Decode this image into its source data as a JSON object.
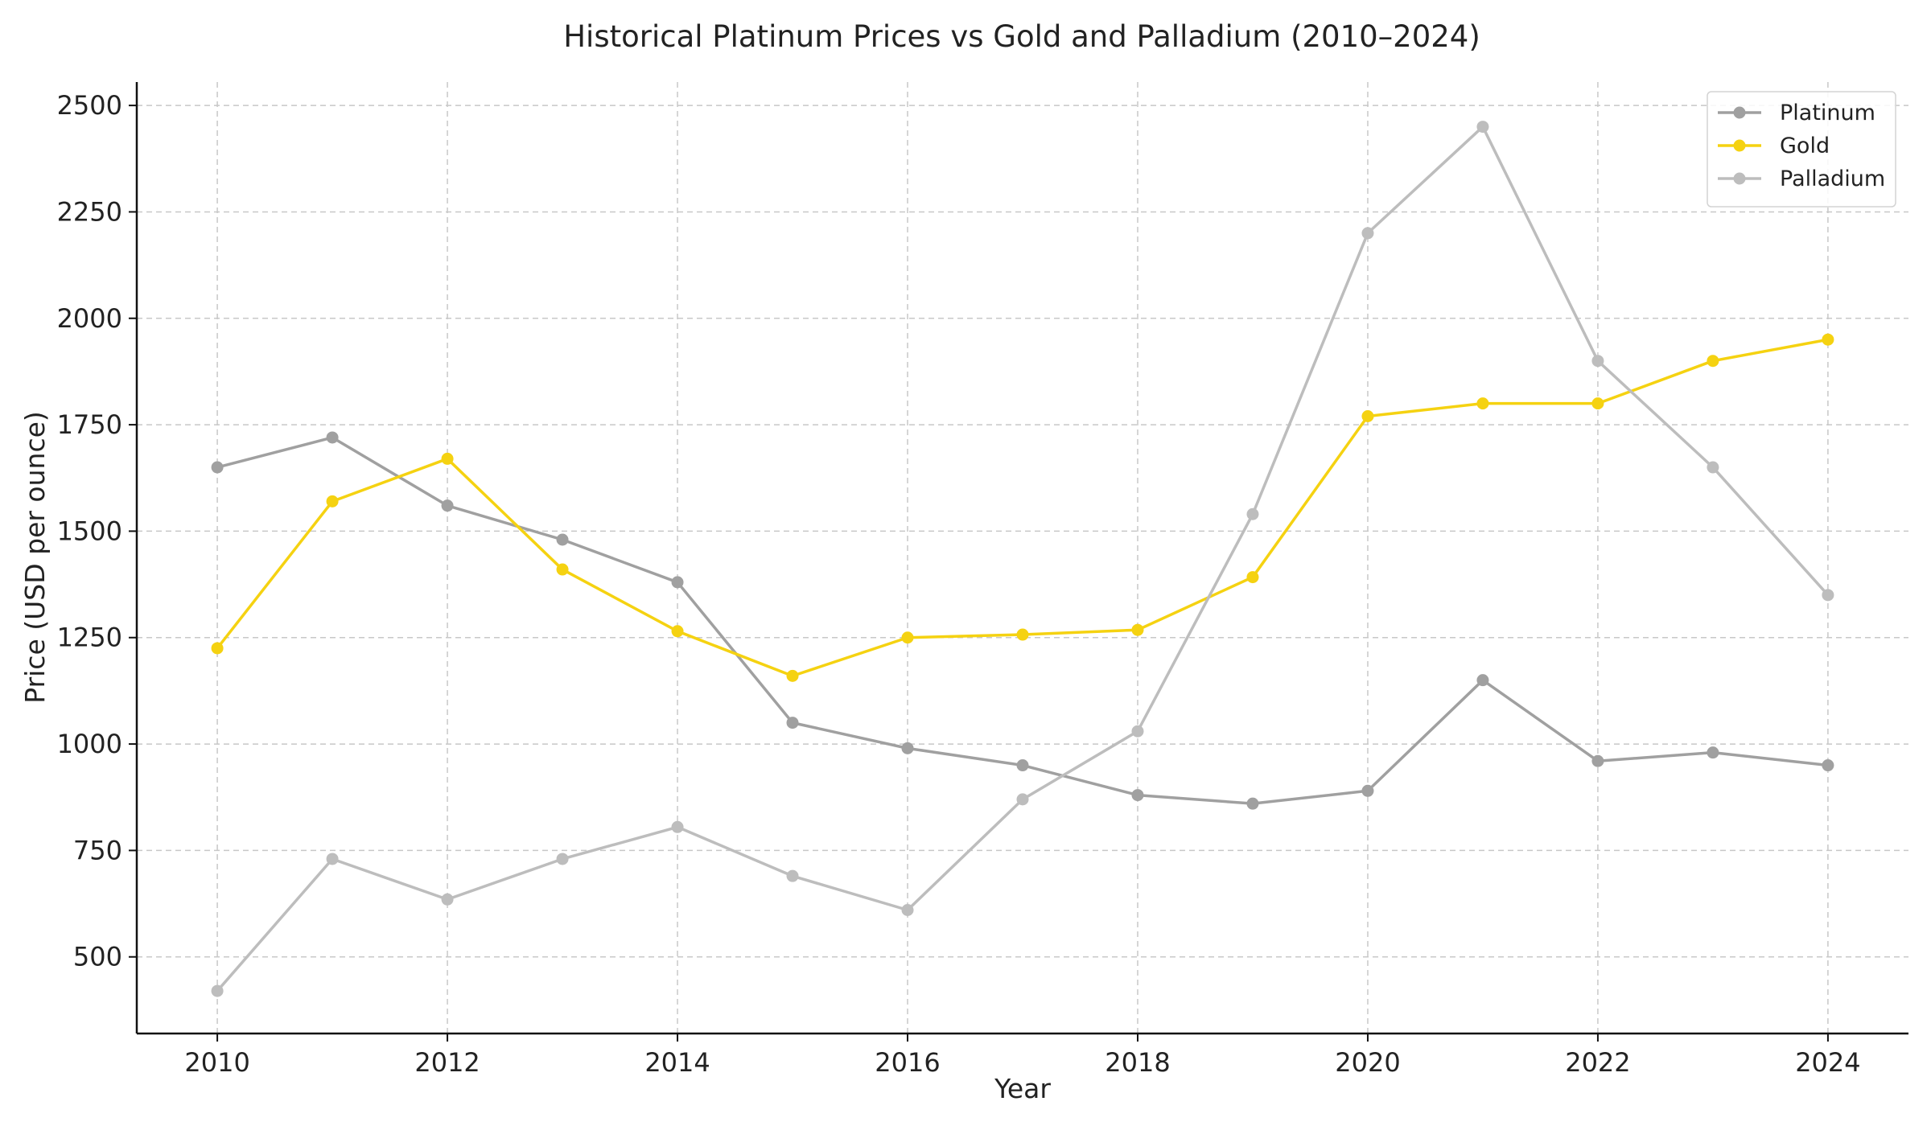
{
  "chart_data": {
    "type": "line",
    "title": "Historical Platinum Prices vs Gold and Palladium (2010–2024)",
    "xlabel": "Year",
    "ylabel": "Price (USD per ounce)",
    "x": [
      2010,
      2011,
      2012,
      2013,
      2014,
      2015,
      2016,
      2017,
      2018,
      2019,
      2020,
      2021,
      2022,
      2023,
      2024
    ],
    "xticks": [
      2010,
      2012,
      2014,
      2016,
      2018,
      2020,
      2022,
      2024
    ],
    "yticks": [
      500,
      750,
      1000,
      1250,
      1500,
      1750,
      2000,
      2250,
      2500
    ],
    "xlim": [
      2009.3,
      2024.7
    ],
    "ylim": [
      320,
      2555
    ],
    "grid": true,
    "legend_position": "top-right",
    "series": [
      {
        "name": "Platinum",
        "color": "#a0a0a0",
        "values": [
          1650,
          1720,
          1560,
          1480,
          1380,
          1050,
          990,
          950,
          880,
          860,
          890,
          1150,
          960,
          980,
          950
        ]
      },
      {
        "name": "Gold",
        "color": "#f5d211",
        "values": [
          1225,
          1570,
          1670,
          1410,
          1265,
          1160,
          1250,
          1257,
          1268,
          1392,
          1770,
          1800,
          1800,
          1900,
          1950
        ]
      },
      {
        "name": "Palladium",
        "color": "#bdbdbd",
        "values": [
          420,
          730,
          635,
          730,
          805,
          690,
          610,
          870,
          1030,
          1540,
          2200,
          2450,
          1900,
          1650,
          1350
        ]
      }
    ]
  }
}
